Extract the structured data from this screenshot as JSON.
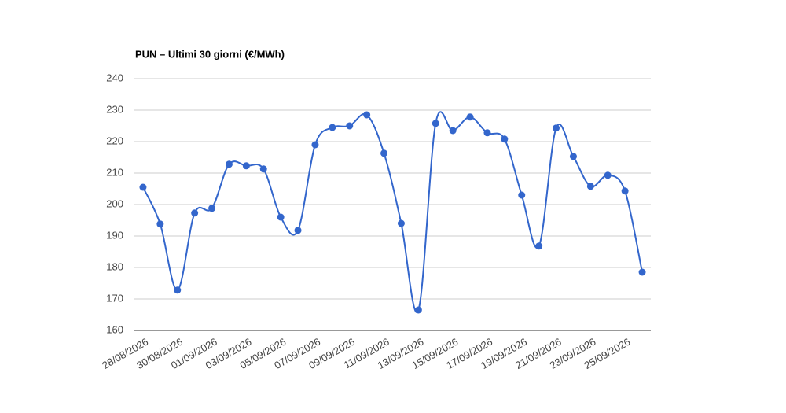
{
  "chart_data": {
    "type": "line",
    "title": "PUN – Ultimi 30 giorni (€/MWh)",
    "categories": [
      "28/08/2026",
      null,
      "30/08/2026",
      null,
      "01/09/2026",
      null,
      "03/09/2026",
      null,
      "05/09/2026",
      null,
      "07/09/2026",
      null,
      "09/09/2026",
      null,
      "11/09/2026",
      null,
      "13/09/2026",
      null,
      "15/09/2026",
      null,
      "17/09/2026",
      null,
      "19/09/2026",
      null,
      "21/09/2026",
      null,
      "23/09/2026",
      null,
      "25/09/2026",
      null
    ],
    "series": [
      {
        "color": "#3366cc",
        "values": [
          205.5,
          193.8,
          172.8,
          197.3,
          198.8,
          212.8,
          212.3,
          211.3,
          196,
          191.8,
          219,
          224.5,
          225,
          228.5,
          216.3,
          194,
          166.5,
          225.8,
          223.5,
          227.8,
          222.8,
          220.8,
          203,
          186.8,
          224.3,
          215.3,
          205.8,
          209.3,
          204.3,
          178.5
        ]
      }
    ],
    "ylim": [
      160,
      240
    ],
    "yticks": [
      160,
      170,
      180,
      190,
      200,
      210,
      220,
      230,
      240
    ],
    "grid": true
  }
}
